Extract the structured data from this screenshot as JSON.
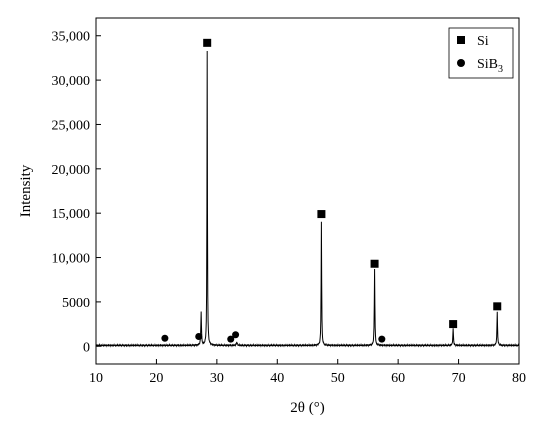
{
  "chart_data": {
    "type": "line",
    "title": "",
    "xlabel": "2θ (°)",
    "ylabel": "Intensity",
    "xlim": [
      10,
      80
    ],
    "ylim": [
      -2000,
      37000
    ],
    "x_ticks": [
      10,
      20,
      30,
      40,
      50,
      60,
      70,
      80
    ],
    "x_tick_labels": [
      "10",
      "20",
      "30",
      "40",
      "50",
      "60",
      "70",
      "80"
    ],
    "y_ticks": [
      0,
      5000,
      10000,
      15000,
      20000,
      25000,
      30000,
      35000
    ],
    "y_tick_labels": [
      "0",
      "5000",
      "10,000",
      "15,000",
      "20,000",
      "25,000",
      "30,000",
      "35,000"
    ],
    "grid": false,
    "legend_position": "top-right",
    "legend": [
      {
        "marker": "square",
        "label": "Si",
        "subscript": ""
      },
      {
        "marker": "circle",
        "label": "SiB",
        "subscript": "3"
      }
    ],
    "series": [
      {
        "type": "line",
        "color": "#000000",
        "baseline": 100,
        "peaks": [
          {
            "x": 27.4,
            "y": 3800,
            "w": 0.12
          },
          {
            "x": 28.4,
            "y": 33200,
            "w": 0.09
          },
          {
            "x": 33.3,
            "y": 400,
            "w": 0.15
          },
          {
            "x": 47.3,
            "y": 14000,
            "w": 0.1
          },
          {
            "x": 56.1,
            "y": 8600,
            "w": 0.11
          },
          {
            "x": 69.1,
            "y": 1900,
            "w": 0.12
          },
          {
            "x": 76.4,
            "y": 3700,
            "w": 0.12
          }
        ]
      }
    ],
    "markers": [
      {
        "shape": "square",
        "x": 28.4,
        "y": 34200
      },
      {
        "shape": "square",
        "x": 47.3,
        "y": 14900
      },
      {
        "shape": "square",
        "x": 56.1,
        "y": 9300
      },
      {
        "shape": "square",
        "x": 69.1,
        "y": 2500
      },
      {
        "shape": "square",
        "x": 76.4,
        "y": 4500
      },
      {
        "shape": "circle",
        "x": 21.4,
        "y": 900
      },
      {
        "shape": "circle",
        "x": 27.0,
        "y": 1100
      },
      {
        "shape": "circle",
        "x": 32.3,
        "y": 800
      },
      {
        "shape": "circle",
        "x": 33.1,
        "y": 1300
      },
      {
        "shape": "circle",
        "x": 57.3,
        "y": 800
      }
    ]
  }
}
